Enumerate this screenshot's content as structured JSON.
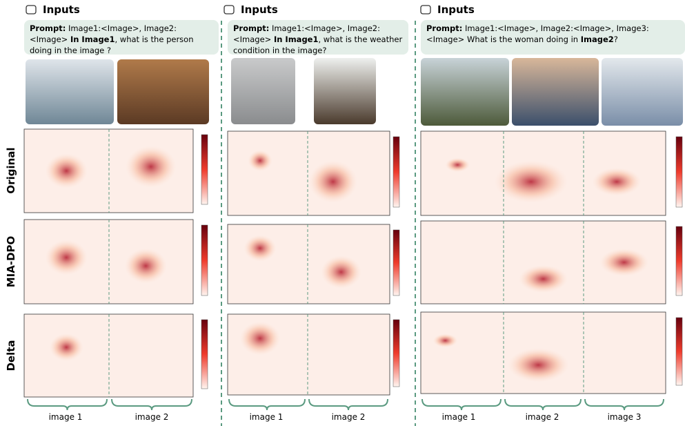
{
  "row_labels": [
    "Original",
    "MIA-DPO",
    "Delta"
  ],
  "panels": [
    {
      "header": "Inputs",
      "prompt": [
        {
          "text": "Prompt:",
          "bold": true
        },
        {
          "text": " Image1:<Image>, Image2:<Image> ",
          "bold": false
        },
        {
          "text": "In Image1",
          "bold": true
        },
        {
          "text": ", what is the person doing in the image ?",
          "bold": false
        }
      ],
      "image_labels": [
        "image 1",
        "image 2"
      ]
    },
    {
      "header": "Inputs",
      "prompt": [
        {
          "text": "Prompt:",
          "bold": true
        },
        {
          "text": " Image1:<Image>, Image2:<Image> ",
          "bold": false
        },
        {
          "text": "In Image1",
          "bold": true
        },
        {
          "text": ", what is the weather condition in the image?",
          "bold": false
        }
      ],
      "image_labels": [
        "image 1",
        "image 2"
      ]
    },
    {
      "header": "Inputs",
      "prompt": [
        {
          "text": "Prompt:",
          "bold": true
        },
        {
          "text": " Image1:<Image>, Image2:<Image>, Image3:<Image> What is the woman doing in ",
          "bold": false
        },
        {
          "text": "Image2",
          "bold": true
        },
        {
          "text": "?",
          "bold": false
        }
      ],
      "image_labels": [
        "image 1",
        "image 2",
        "image 3"
      ]
    }
  ]
}
